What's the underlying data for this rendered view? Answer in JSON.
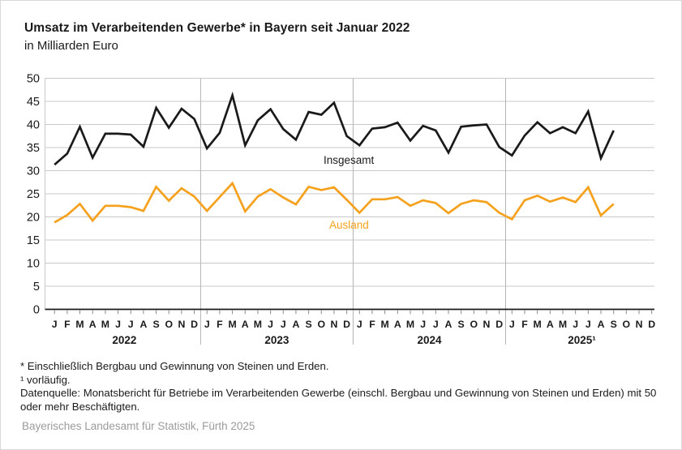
{
  "chart_data": {
    "type": "line",
    "title": "Umsatz im Verarbeitenden Gewerbe* in Bayern seit Januar 2022",
    "subtitle": "in Milliarden Euro",
    "ylim": [
      0,
      50
    ],
    "ytick_step": 5,
    "grid": "horizontal-plus-year-separators",
    "legend_position": "inline-labels",
    "month_letters": [
      "J",
      "F",
      "M",
      "A",
      "M",
      "J",
      "J",
      "A",
      "S",
      "O",
      "N",
      "D"
    ],
    "year_labels": [
      "2022",
      "2023",
      "2024",
      "2025¹"
    ],
    "n_months_axis": 48,
    "series": [
      {
        "name": "Insgesamt",
        "color": "#1a1a1a",
        "label_x": 398,
        "label_y": 201,
        "values": [
          31.3,
          33.7,
          39.5,
          32.8,
          38.0,
          38.0,
          37.8,
          35.2,
          43.6,
          39.3,
          43.4,
          41.2,
          34.8,
          38.2,
          46.3,
          35.5,
          40.9,
          43.3,
          39.0,
          36.7,
          42.7,
          42.1,
          44.7,
          37.5,
          35.5,
          39.1,
          39.4,
          40.4,
          36.5,
          39.7,
          38.7,
          33.9,
          39.5,
          39.8,
          40.0,
          35.1,
          33.3,
          37.6,
          40.5,
          38.1,
          39.4,
          38.1,
          42.8,
          32.7,
          38.7
        ]
      },
      {
        "name": "Ausland",
        "color": "#f5a11d",
        "label_x": 405,
        "label_y": 281,
        "values": [
          18.8,
          20.4,
          22.8,
          19.2,
          22.4,
          22.4,
          22.1,
          21.3,
          26.5,
          23.5,
          26.2,
          24.4,
          21.3,
          24.3,
          27.3,
          21.2,
          24.4,
          26.0,
          24.2,
          22.7,
          26.5,
          25.8,
          26.4,
          23.7,
          20.9,
          23.8,
          23.8,
          24.3,
          22.4,
          23.6,
          23.0,
          20.8,
          22.8,
          23.6,
          23.2,
          20.9,
          19.5,
          23.6,
          24.6,
          23.3,
          24.2,
          23.2,
          26.4,
          20.3,
          22.8
        ]
      }
    ]
  },
  "footnotes": [
    "* Einschließlich Bergbau und Gewinnung von Steinen und Erden.",
    "¹ vorläufig.",
    "Datenquelle: Monatsbericht für Betriebe im Verarbeitenden Gewerbe (einschl. Bergbau und Gewinnung von Steinen und Erden) mit 50 oder mehr Beschäftigten."
  ],
  "source": "Bayerisches Landesamt für Statistik, Fürth 2025"
}
